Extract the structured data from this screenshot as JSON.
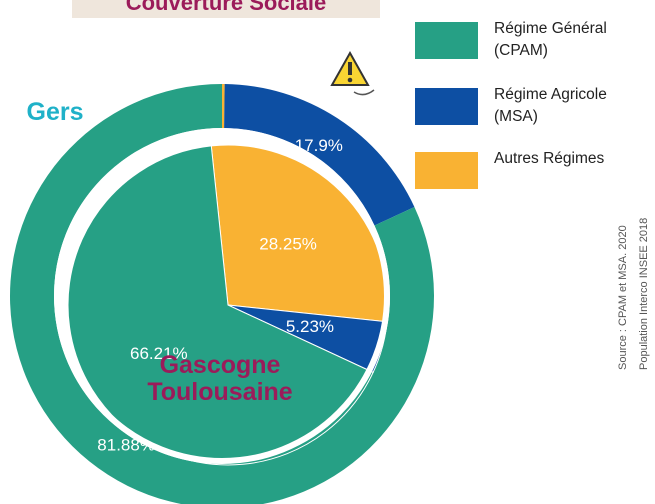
{
  "chart_data": {
    "type": "nested-donut",
    "title": "Couverture Sociale",
    "categories": [
      "Gers",
      "Gascogne Toulousaine"
    ],
    "series": [
      {
        "name": "Régime Général (CPAM)",
        "color": "#26a085",
        "values": [
          81.88,
          66.21
        ],
        "value_labels": [
          "81.88%",
          "66.21%"
        ]
      },
      {
        "name": "Régime Agricole (MSA)",
        "color": "#0d4fa3",
        "values": [
          17.9,
          5.23
        ],
        "value_labels": [
          "17.9%",
          "5.23%"
        ]
      },
      {
        "name": "Autres Régimes",
        "color": "#f9b233",
        "values": [
          0.2,
          28.25
        ],
        "value_labels": [
          "0.2%",
          "28.25%"
        ]
      }
    ],
    "source": [
      "Source : CPAM et MSA. 2020",
      "Population Interco INSEE 2018"
    ]
  }
}
